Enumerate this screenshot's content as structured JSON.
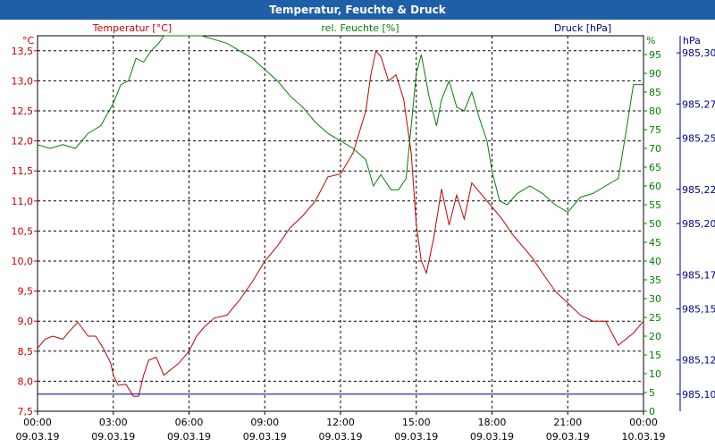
{
  "window": {
    "title": "Temperatur, Feuchte & Druck"
  },
  "colors": {
    "temperature": "#c00000",
    "humidity": "#008000",
    "pressure": "#00008b",
    "titlebar": "#1f5fa8"
  },
  "chart_data": {
    "type": "line",
    "title": "Temperatur, Feuchte & Druck",
    "grid": true,
    "legend": "top",
    "x_ticks": [
      {
        "time": "00:00",
        "date": "09.03.19"
      },
      {
        "time": "03:00",
        "date": "09.03.19"
      },
      {
        "time": "06:00",
        "date": "09.03.19"
      },
      {
        "time": "09:00",
        "date": "09.03.19"
      },
      {
        "time": "12:00",
        "date": "09.03.19"
      },
      {
        "time": "15:00",
        "date": "09.03.19"
      },
      {
        "time": "18:00",
        "date": "09.03.19"
      },
      {
        "time": "21:00",
        "date": "09.03.19"
      },
      {
        "time": "00:00",
        "date": "10.03.19"
      }
    ],
    "xlim_hours": [
      0,
      24
    ],
    "axes": {
      "temperature": {
        "label": "Temperatur [°C]",
        "unit": "°C",
        "ylim": [
          7.5,
          13.75
        ],
        "ticks": [
          "7,5",
          "8,0",
          "8,5",
          "9,0",
          "9,5",
          "10,0",
          "10,5",
          "11,0",
          "11,5",
          "12,0",
          "12,5",
          "13,0",
          "13,5"
        ]
      },
      "humidity": {
        "label": "rel. Feuchte [%]",
        "unit": "%",
        "ylim": [
          0,
          100
        ],
        "ticks": [
          "0",
          "5",
          "10",
          "15",
          "20",
          "25",
          "30",
          "35",
          "40",
          "45",
          "50",
          "55",
          "60",
          "65",
          "70",
          "75",
          "80",
          "85",
          "90",
          "95"
        ]
      },
      "pressure": {
        "label": "Druck [hPa]",
        "unit": "hPa",
        "ylim": [
          985.09,
          985.31
        ],
        "ticks": [
          "985,10",
          "985,12",
          "985,15",
          "985,17",
          "985,20",
          "985,22",
          "985,25",
          "985,27",
          "985,30"
        ]
      }
    },
    "series": [
      {
        "name": "Temperatur [°C]",
        "axis": "temperature",
        "x": [
          0,
          0.3,
          0.6,
          1.0,
          1.3,
          1.6,
          2.0,
          2.3,
          2.6,
          2.9,
          3.0,
          3.2,
          3.5,
          3.8,
          4.0,
          4.2,
          4.4,
          4.7,
          5.0,
          5.3,
          5.6,
          6.0,
          6.3,
          6.6,
          7.0,
          7.5,
          8.0,
          8.5,
          9.0,
          9.5,
          10.0,
          10.5,
          11.0,
          11.5,
          12.0,
          12.5,
          13.0,
          13.2,
          13.4,
          13.6,
          13.9,
          14.2,
          14.5,
          14.8,
          15.0,
          15.2,
          15.4,
          15.7,
          16.0,
          16.3,
          16.6,
          16.9,
          17.2,
          17.6,
          18.0,
          18.4,
          18.8,
          19.2,
          19.6,
          20.0,
          20.5,
          21.0,
          21.5,
          22.0,
          22.5,
          23.0,
          23.3,
          23.6,
          24.0
        ],
        "values": [
          8.55,
          8.7,
          8.75,
          8.7,
          8.85,
          8.98,
          8.75,
          8.75,
          8.55,
          8.3,
          8.1,
          7.93,
          7.95,
          7.75,
          7.75,
          8.1,
          8.35,
          8.4,
          8.1,
          8.2,
          8.3,
          8.5,
          8.75,
          8.9,
          9.05,
          9.1,
          9.35,
          9.65,
          10.0,
          10.25,
          10.55,
          10.75,
          11.0,
          11.4,
          11.45,
          11.8,
          12.5,
          13.1,
          13.5,
          13.4,
          13.0,
          13.1,
          12.7,
          11.8,
          10.6,
          10.0,
          9.8,
          10.4,
          11.2,
          10.6,
          11.1,
          10.7,
          11.3,
          11.1,
          10.9,
          10.7,
          10.45,
          10.25,
          10.05,
          9.8,
          9.5,
          9.3,
          9.1,
          9.0,
          9.0,
          8.6,
          8.7,
          8.8,
          9.0
        ]
      },
      {
        "name": "rel. Feuchte [%]",
        "axis": "humidity",
        "x": [
          0,
          0.5,
          1.0,
          1.5,
          2.0,
          2.5,
          3.0,
          3.3,
          3.6,
          3.9,
          4.2,
          4.5,
          4.8,
          5.0,
          5.5,
          6.0,
          6.5,
          7.0,
          7.5,
          8.0,
          8.5,
          9.0,
          9.5,
          10.0,
          10.5,
          11.0,
          11.5,
          12.0,
          12.5,
          13.0,
          13.3,
          13.6,
          14.0,
          14.3,
          14.6,
          15.0,
          15.2,
          15.5,
          15.8,
          16.0,
          16.3,
          16.6,
          16.9,
          17.2,
          17.5,
          17.8,
          18.0,
          18.3,
          18.6,
          19.0,
          19.5,
          20.0,
          20.5,
          21.0,
          21.5,
          22.0,
          22.5,
          23.0,
          23.3,
          23.6,
          24.0
        ],
        "values": [
          71,
          70,
          71,
          70,
          74,
          76,
          82,
          87,
          88,
          94,
          93,
          96,
          98,
          100,
          100,
          100,
          100,
          99,
          98,
          96,
          94,
          91,
          88,
          84,
          81,
          77,
          74,
          72,
          70,
          67,
          60,
          63,
          59,
          59,
          62,
          90,
          95,
          84,
          76,
          83,
          88,
          81,
          80,
          85,
          78,
          72,
          64,
          56,
          55,
          58,
          60,
          58,
          55,
          53,
          57,
          58,
          60,
          62,
          74,
          87,
          87
        ]
      },
      {
        "name": "Druck [hPa]",
        "axis": "pressure",
        "x": [
          0,
          24
        ],
        "values": [
          985.1,
          985.1
        ]
      }
    ]
  }
}
